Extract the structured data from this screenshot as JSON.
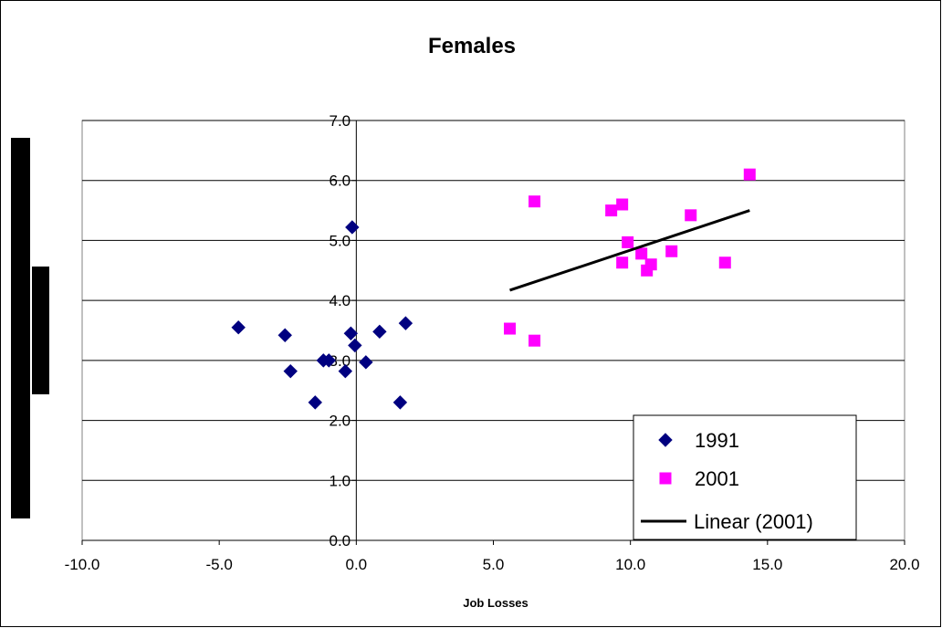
{
  "chart_data": {
    "type": "scatter",
    "title": "Females",
    "xlabel": "Job Losses",
    "ylabel": "",
    "xlim": [
      -10,
      20
    ],
    "ylim": [
      0,
      7
    ],
    "x_ticks": [
      "-10.0",
      "-5.0",
      "0.0",
      "5.0",
      "10.0",
      "15.0",
      "20.0"
    ],
    "y_ticks": [
      "0.0",
      "1.0",
      "2.0",
      "3.0",
      "4.0",
      "5.0",
      "6.0",
      "7.0"
    ],
    "grid": "horizontal",
    "legend_position": "bottom-right",
    "series": [
      {
        "name": "1991",
        "marker": "diamond",
        "color": "#000080",
        "points": [
          {
            "x": -4.3,
            "y": 3.55
          },
          {
            "x": -2.6,
            "y": 3.42
          },
          {
            "x": -2.4,
            "y": 2.82
          },
          {
            "x": -1.5,
            "y": 2.3
          },
          {
            "x": -1.2,
            "y": 3.0
          },
          {
            "x": -1.0,
            "y": 3.0
          },
          {
            "x": -0.4,
            "y": 2.82
          },
          {
            "x": -0.2,
            "y": 3.45
          },
          {
            "x": -0.15,
            "y": 5.22
          },
          {
            "x": -0.05,
            "y": 3.25
          },
          {
            "x": 0.35,
            "y": 2.97
          },
          {
            "x": 0.85,
            "y": 3.48
          },
          {
            "x": 1.6,
            "y": 2.3
          },
          {
            "x": 1.8,
            "y": 3.62
          }
        ]
      },
      {
        "name": "2001",
        "marker": "square",
        "color": "#FF00FF",
        "points": [
          {
            "x": 5.6,
            "y": 3.53
          },
          {
            "x": 6.5,
            "y": 3.33
          },
          {
            "x": 6.5,
            "y": 5.65
          },
          {
            "x": 9.3,
            "y": 5.5
          },
          {
            "x": 9.7,
            "y": 5.6
          },
          {
            "x": 9.7,
            "y": 4.63
          },
          {
            "x": 9.9,
            "y": 4.97
          },
          {
            "x": 10.4,
            "y": 4.78
          },
          {
            "x": 10.6,
            "y": 4.5
          },
          {
            "x": 10.75,
            "y": 4.6
          },
          {
            "x": 11.5,
            "y": 4.82
          },
          {
            "x": 12.2,
            "y": 5.42
          },
          {
            "x": 13.45,
            "y": 4.63
          },
          {
            "x": 14.35,
            "y": 6.1
          }
        ]
      },
      {
        "name": "Linear (2001)",
        "type": "line",
        "color": "#000000",
        "points": [
          {
            "x": 5.6,
            "y": 4.17
          },
          {
            "x": 14.35,
            "y": 5.5
          }
        ]
      }
    ]
  }
}
